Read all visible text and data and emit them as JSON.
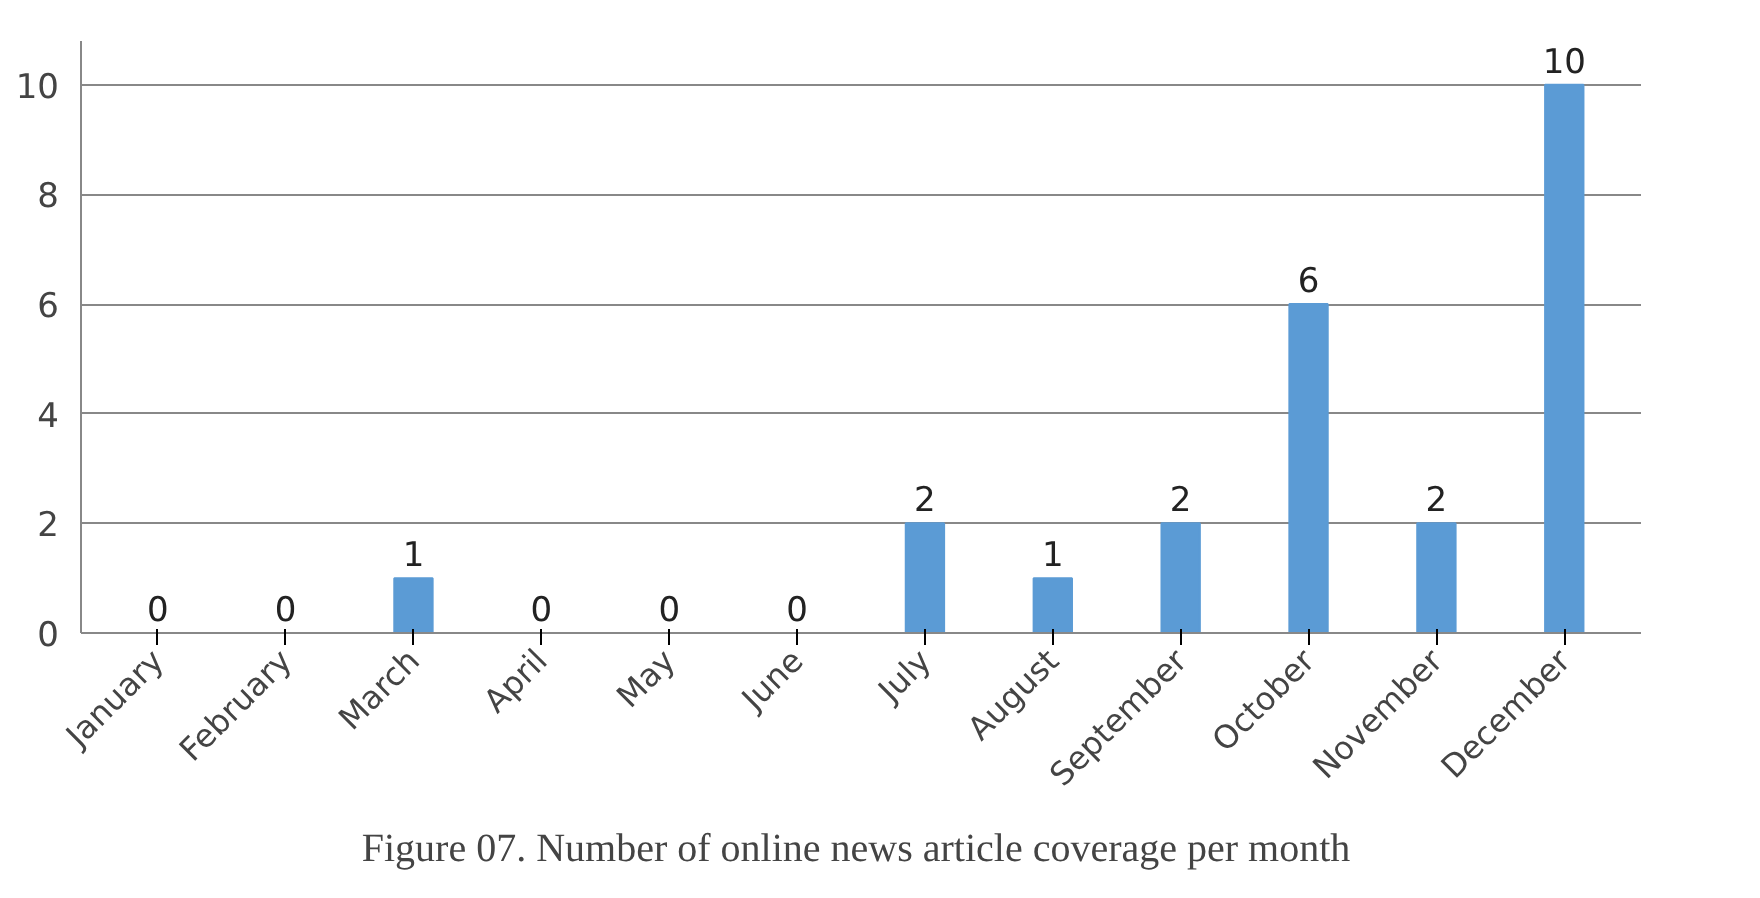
{
  "chart_data": {
    "type": "bar",
    "title": "Figure 07. Number of online news article  coverage per month",
    "categories": [
      "January",
      "February",
      "March",
      "April",
      "May",
      "June",
      "July",
      "August",
      "September",
      "October",
      "November",
      "December"
    ],
    "values": [
      0,
      0,
      1,
      0,
      0,
      0,
      2,
      1,
      2,
      6,
      2,
      10
    ],
    "color": "#5b9bd5",
    "ylim": [
      0,
      10
    ],
    "yticks": [
      0,
      2,
      4,
      6,
      8,
      10
    ],
    "grid": "y",
    "data_labels": true
  }
}
